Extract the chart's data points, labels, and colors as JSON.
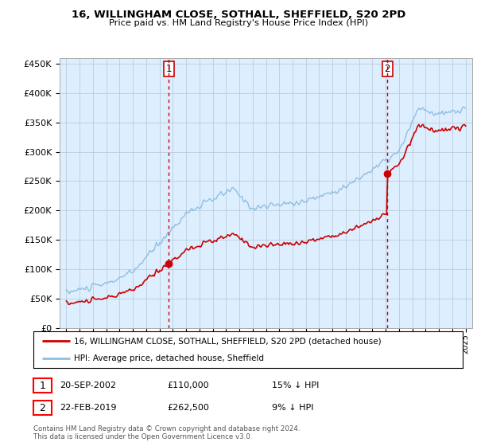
{
  "title1": "16, WILLINGHAM CLOSE, SOTHALL, SHEFFIELD, S20 2PD",
  "title2": "Price paid vs. HM Land Registry's House Price Index (HPI)",
  "ylim": [
    0,
    450000
  ],
  "yticks": [
    0,
    50000,
    100000,
    150000,
    200000,
    250000,
    300000,
    350000,
    400000,
    450000
  ],
  "ytick_labels": [
    "£0",
    "£50K",
    "£100K",
    "£150K",
    "£200K",
    "£250K",
    "£300K",
    "£350K",
    "£400K",
    "£450K"
  ],
  "sale1_t": 2002.7083,
  "sale1_price": 110000,
  "sale1_label": "20-SEP-2002",
  "sale1_price_label": "£110,000",
  "sale1_hpi_label": "15% ↓ HPI",
  "sale2_t": 2019.125,
  "sale2_price": 262500,
  "sale2_label": "22-FEB-2019",
  "sale2_price_label": "£262,500",
  "sale2_hpi_label": "9% ↓ HPI",
  "legend_line1": "16, WILLINGHAM CLOSE, SOTHALL, SHEFFIELD, S20 2PD (detached house)",
  "legend_line2": "HPI: Average price, detached house, Sheffield",
  "hpi_color": "#8fbfe0",
  "sale_color": "#cc0000",
  "vline_color": "#cc0000",
  "chart_bg": "#ddeeff",
  "footer": "Contains HM Land Registry data © Crown copyright and database right 2024.\nThis data is licensed under the Open Government Licence v3.0.",
  "background_color": "#ffffff",
  "grid_color": "#bbccdd"
}
